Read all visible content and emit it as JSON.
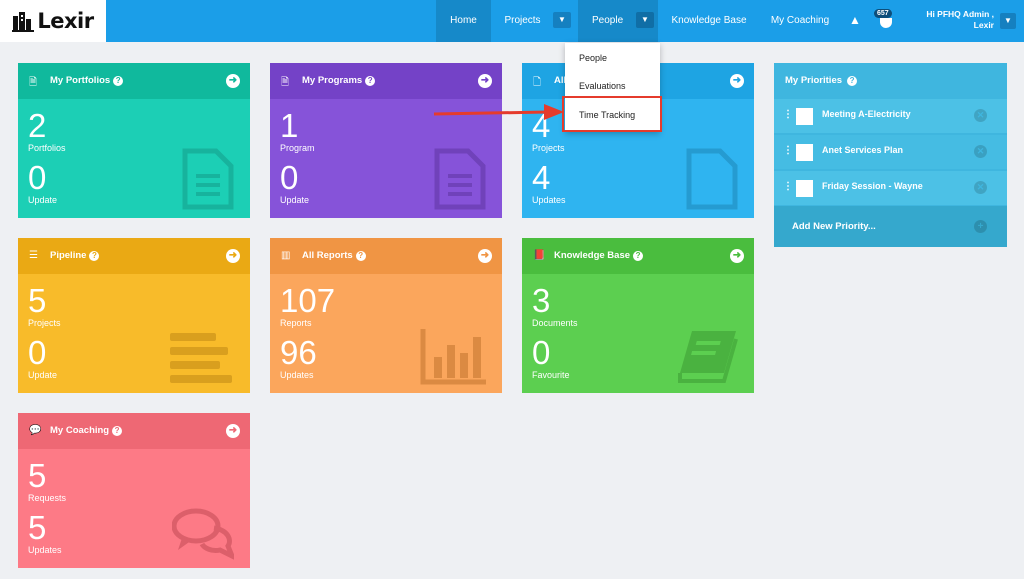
{
  "brand": {
    "name": "Lexir"
  },
  "nav": {
    "home": "Home",
    "projects": "Projects",
    "people": "People",
    "knowledge_base": "Knowledge Base",
    "my_coaching": "My Coaching",
    "notification_count": "657",
    "greeting_line1": "Hi PFHQ Admin ,",
    "greeting_line2": "Lexir"
  },
  "people_dropdown": {
    "items": [
      "People",
      "Evaluations",
      "Time Tracking"
    ]
  },
  "cards": [
    {
      "title": "My Portfolios",
      "value1": "2",
      "label1": "Portfolios",
      "value2": "0",
      "label2": "Update",
      "color": "#1ccfb5",
      "head_color": "#10b99d",
      "icon": "document-icon"
    },
    {
      "title": "My Programs",
      "value1": "1",
      "label1": "Program",
      "value2": "0",
      "label2": "Update",
      "color": "#8653d9",
      "head_color": "#7442c7",
      "icon": "document-icon"
    },
    {
      "title": "All Projects",
      "value1": "4",
      "label1": "Projects",
      "value2": "4",
      "label2": "Updates",
      "color": "#2fb4f0",
      "head_color": "#1ea4e3",
      "icon": "file-icon"
    },
    {
      "title": "Pipeline",
      "value1": "5",
      "label1": "Projects",
      "value2": "0",
      "label2": "Update",
      "color": "#f8bb2a",
      "head_color": "#eaa914",
      "icon": "list-icon"
    },
    {
      "title": "All Reports",
      "value1": "107",
      "label1": "Reports",
      "value2": "96",
      "label2": "Updates",
      "color": "#fba65c",
      "head_color": "#f09544",
      "icon": "bar-chart-icon"
    },
    {
      "title": "Knowledge Base",
      "value1": "3",
      "label1": "Documents",
      "value2": "0",
      "label2": "Favourite",
      "color": "#5ccf50",
      "head_color": "#4abd3e",
      "icon": "book-icon"
    },
    {
      "title": "My Coaching",
      "value1": "5",
      "label1": "Requests",
      "value2": "5",
      "label2": "Updates",
      "color": "#fd7a86",
      "head_color": "#ee6874",
      "icon": "chat-icon"
    }
  ],
  "priorities": {
    "title": "My Priorities",
    "items": [
      "Meeting A-Electricity",
      "Anet Services Plan",
      "Friday Session - Wayne"
    ],
    "add_label": "Add New Priority..."
  }
}
